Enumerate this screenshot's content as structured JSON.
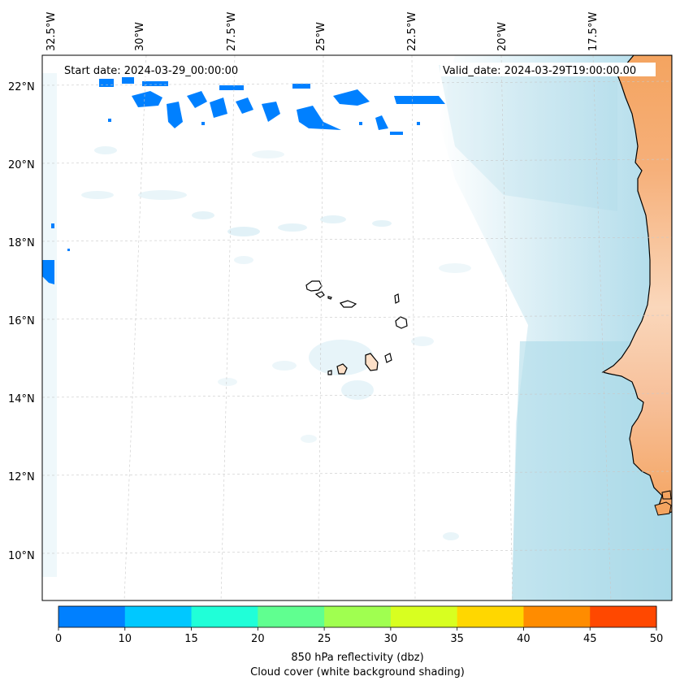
{
  "map": {
    "start_label": "Start date: 2024-03-29_00:00:00",
    "valid_label": "Valid_date: 2024-03-29T19:00:00.00",
    "lon_labels": [
      "32.5°W",
      "30°W",
      "27.5°W",
      "25°W",
      "22.5°W",
      "20°W",
      "17.5°W"
    ],
    "lat_labels": [
      "22°N",
      "20°N",
      "18°N",
      "16°N",
      "14°N",
      "12°N",
      "10°N"
    ]
  },
  "colorbar": {
    "ticks": [
      "0",
      "10",
      "15",
      "20",
      "25",
      "30",
      "35",
      "40",
      "45",
      "50"
    ],
    "colors": [
      "#0080ff",
      "#00c8ff",
      "#20ffd8",
      "#60ff90",
      "#a0ff50",
      "#d8ff20",
      "#ffd700",
      "#ff8c00",
      "#ff4800"
    ],
    "title": "850 hPa reflectivity (dbz)",
    "subtitle": "Cloud cover (white background shading)"
  },
  "colors": {
    "land_desert": "#f4a460",
    "land_light": "#fde0c8",
    "cloud": "#a8d8e8",
    "reflectivity": "#0080ff"
  }
}
